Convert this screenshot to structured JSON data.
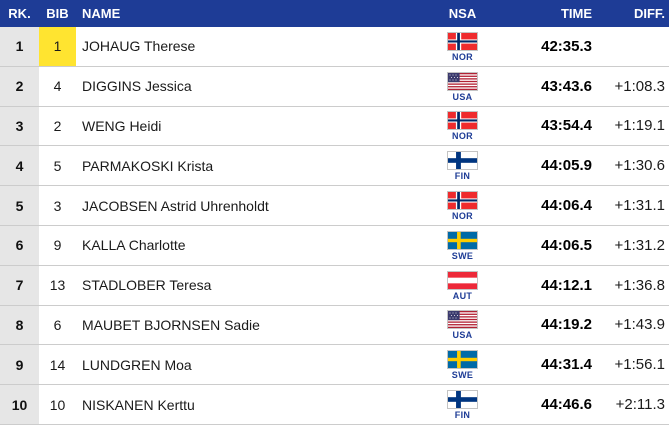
{
  "table": {
    "headers": {
      "rank": "RK.",
      "bib": "BIB",
      "name": "NAME",
      "nsa": "NSA",
      "time": "TIME",
      "diff": "DIFF."
    },
    "rows": [
      {
        "rank": "1",
        "bib": "1",
        "bib_leader": true,
        "name": "JOHAUG Therese",
        "nsa": "NOR",
        "time": "42:35.3",
        "diff": ""
      },
      {
        "rank": "2",
        "bib": "4",
        "bib_leader": false,
        "name": "DIGGINS Jessica",
        "nsa": "USA",
        "time": "43:43.6",
        "diff": "+1:08.3"
      },
      {
        "rank": "3",
        "bib": "2",
        "bib_leader": false,
        "name": "WENG Heidi",
        "nsa": "NOR",
        "time": "43:54.4",
        "diff": "+1:19.1"
      },
      {
        "rank": "4",
        "bib": "5",
        "bib_leader": false,
        "name": "PARMAKOSKI Krista",
        "nsa": "FIN",
        "time": "44:05.9",
        "diff": "+1:30.6"
      },
      {
        "rank": "5",
        "bib": "3",
        "bib_leader": false,
        "name": "JACOBSEN Astrid Uhrenholdt",
        "nsa": "NOR",
        "time": "44:06.4",
        "diff": "+1:31.1"
      },
      {
        "rank": "6",
        "bib": "9",
        "bib_leader": false,
        "name": "KALLA Charlotte",
        "nsa": "SWE",
        "time": "44:06.5",
        "diff": "+1:31.2"
      },
      {
        "rank": "7",
        "bib": "13",
        "bib_leader": false,
        "name": "STADLOBER Teresa",
        "nsa": "AUT",
        "time": "44:12.1",
        "diff": "+1:36.8"
      },
      {
        "rank": "8",
        "bib": "6",
        "bib_leader": false,
        "name": "MAUBET BJORNSEN Sadie",
        "nsa": "USA",
        "time": "44:19.2",
        "diff": "+1:43.9"
      },
      {
        "rank": "9",
        "bib": "14",
        "bib_leader": false,
        "name": "LUNDGREN Moa",
        "nsa": "SWE",
        "time": "44:31.4",
        "diff": "+1:56.1"
      },
      {
        "rank": "10",
        "bib": "10",
        "bib_leader": false,
        "name": "NISKANEN Kerttu",
        "nsa": "FIN",
        "time": "44:46.6",
        "diff": "+2:11.3"
      }
    ]
  },
  "colors": {
    "header_bg": "#1e3c96",
    "header_text": "#ffffff",
    "rank_column_bg": "#e6e6e6",
    "leader_bib_bg": "#ffe430",
    "nsa_code_text": "#1e3c96",
    "row_divider": "#cccccc"
  }
}
